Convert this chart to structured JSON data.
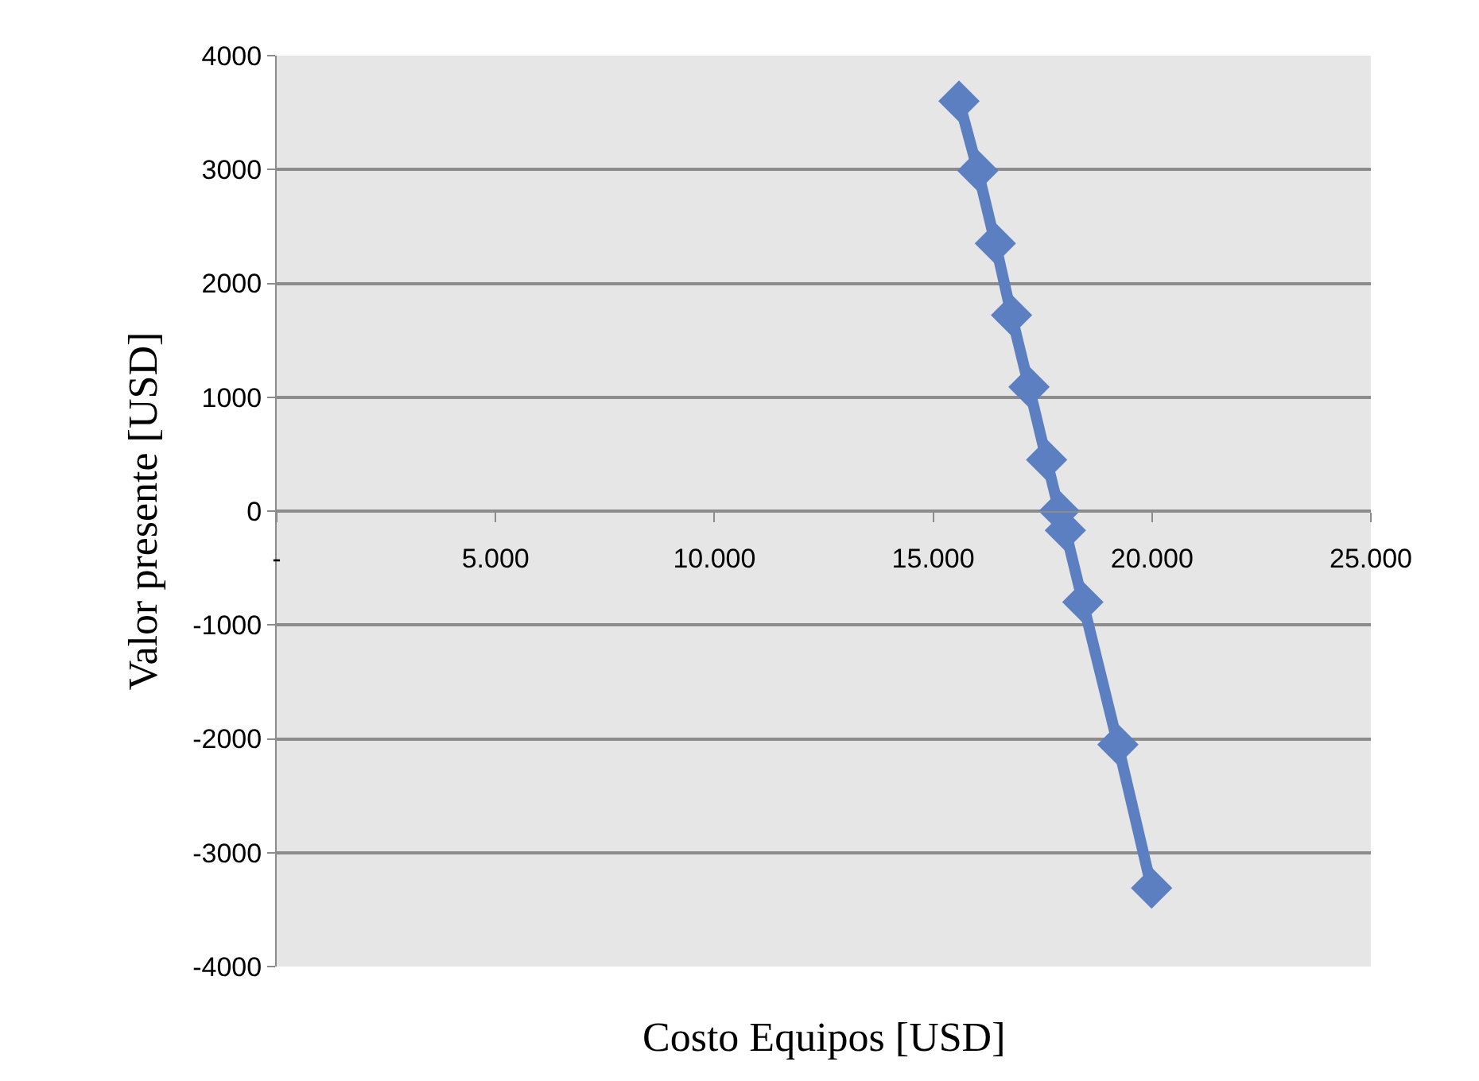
{
  "chart_data": {
    "type": "line",
    "xlabel": "Costo Equipos [USD]",
    "ylabel": "Valor presente [USD]",
    "x": [
      15590,
      16020,
      16420,
      16790,
      17190,
      17590,
      17880,
      18020,
      18420,
      19220,
      19990
    ],
    "series": [
      {
        "color": "#5b7fc1",
        "values": [
          3600,
          2990,
          2350,
          1720,
          1090,
          450,
          0,
          -170,
          -800,
          -2050,
          -3310
        ]
      }
    ],
    "xlim": [
      0,
      25000
    ],
    "ylim": [
      -4000,
      4000
    ],
    "xticks": [
      {
        "value": 0,
        "label": "-"
      },
      {
        "value": 5000,
        "label": "5.000"
      },
      {
        "value": 10000,
        "label": "10.000"
      },
      {
        "value": 15000,
        "label": "15.000"
      },
      {
        "value": 20000,
        "label": "20.000"
      },
      {
        "value": 25000,
        "label": "25.000"
      }
    ],
    "yticks": [
      -4000,
      -3000,
      -2000,
      -1000,
      0,
      1000,
      2000,
      3000,
      4000
    ],
    "grid": "y",
    "marker": "diamond",
    "line_style": "solid",
    "legend": false
  }
}
